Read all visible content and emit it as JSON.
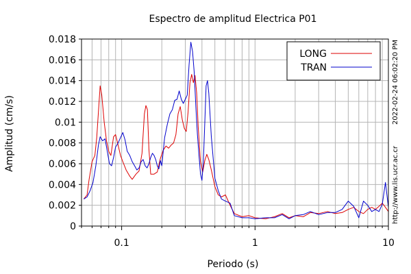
{
  "chart_data": {
    "type": "line",
    "title": "Espectro de amplitud Electrica P01",
    "xlabel": "Periodo (s)",
    "ylabel": "Amplitud (cm/s)",
    "xscale": "log",
    "xlim": [
      0.05,
      10
    ],
    "ylim": [
      0,
      0.018
    ],
    "grid": true,
    "legend_position": "top-right",
    "x_tick_labels": [
      {
        "value": 0.1,
        "label": "0.1"
      },
      {
        "value": 1,
        "label": "1"
      },
      {
        "value": 10,
        "label": "10"
      }
    ],
    "y_tick_labels": [
      {
        "value": 0,
        "label": "0"
      },
      {
        "value": 0.002,
        "label": "0.002"
      },
      {
        "value": 0.004,
        "label": "0.004"
      },
      {
        "value": 0.006,
        "label": "0.006"
      },
      {
        "value": 0.008,
        "label": "0.008"
      },
      {
        "value": 0.01,
        "label": "0.01"
      },
      {
        "value": 0.012,
        "label": "0.012"
      },
      {
        "value": 0.014,
        "label": "0.014"
      },
      {
        "value": 0.016,
        "label": "0.016"
      },
      {
        "value": 0.018,
        "label": "0.018"
      }
    ],
    "annotations": [
      "2022-02-24 06:02:20 PM",
      "http://www.lis.ucr.ac.cr"
    ],
    "series": [
      {
        "name": "LONG",
        "color": "#dd0000",
        "points": [
          [
            0.052,
            0.0026
          ],
          [
            0.055,
            0.003
          ],
          [
            0.057,
            0.0045
          ],
          [
            0.06,
            0.0062
          ],
          [
            0.063,
            0.0068
          ],
          [
            0.065,
            0.0085
          ],
          [
            0.067,
            0.011
          ],
          [
            0.069,
            0.0135
          ],
          [
            0.071,
            0.0126
          ],
          [
            0.074,
            0.01
          ],
          [
            0.077,
            0.0082
          ],
          [
            0.08,
            0.0072
          ],
          [
            0.083,
            0.0068
          ],
          [
            0.087,
            0.0086
          ],
          [
            0.09,
            0.0088
          ],
          [
            0.094,
            0.0078
          ],
          [
            0.098,
            0.0068
          ],
          [
            0.102,
            0.0062
          ],
          [
            0.108,
            0.0054
          ],
          [
            0.115,
            0.0048
          ],
          [
            0.12,
            0.0045
          ],
          [
            0.128,
            0.005
          ],
          [
            0.135,
            0.0053
          ],
          [
            0.142,
            0.007
          ],
          [
            0.148,
            0.0108
          ],
          [
            0.152,
            0.0116
          ],
          [
            0.156,
            0.0112
          ],
          [
            0.16,
            0.0074
          ],
          [
            0.165,
            0.005
          ],
          [
            0.175,
            0.005
          ],
          [
            0.185,
            0.0052
          ],
          [
            0.195,
            0.0065
          ],
          [
            0.205,
            0.0073
          ],
          [
            0.215,
            0.0077
          ],
          [
            0.225,
            0.0075
          ],
          [
            0.235,
            0.0078
          ],
          [
            0.245,
            0.008
          ],
          [
            0.255,
            0.0088
          ],
          [
            0.265,
            0.0108
          ],
          [
            0.275,
            0.0115
          ],
          [
            0.285,
            0.0102
          ],
          [
            0.295,
            0.0094
          ],
          [
            0.305,
            0.0091
          ],
          [
            0.315,
            0.011
          ],
          [
            0.325,
            0.0138
          ],
          [
            0.335,
            0.0146
          ],
          [
            0.345,
            0.0138
          ],
          [
            0.355,
            0.0145
          ],
          [
            0.365,
            0.0128
          ],
          [
            0.375,
            0.0095
          ],
          [
            0.39,
            0.0062
          ],
          [
            0.405,
            0.0052
          ],
          [
            0.42,
            0.0063
          ],
          [
            0.435,
            0.0069
          ],
          [
            0.45,
            0.0064
          ],
          [
            0.47,
            0.0054
          ],
          [
            0.5,
            0.0038
          ],
          [
            0.53,
            0.003
          ],
          [
            0.56,
            0.0028
          ],
          [
            0.6,
            0.003
          ],
          [
            0.65,
            0.002
          ],
          [
            0.7,
            0.0012
          ],
          [
            0.8,
            0.0009
          ],
          [
            0.9,
            0.001
          ],
          [
            1.0,
            0.0008
          ],
          [
            1.2,
            0.0007
          ],
          [
            1.4,
            0.0009
          ],
          [
            1.6,
            0.0012
          ],
          [
            1.8,
            0.0008
          ],
          [
            2.0,
            0.001
          ],
          [
            2.3,
            0.0009
          ],
          [
            2.6,
            0.0013
          ],
          [
            3.0,
            0.0012
          ],
          [
            3.5,
            0.0014
          ],
          [
            4.0,
            0.0012
          ],
          [
            4.5,
            0.0013
          ],
          [
            5.0,
            0.0016
          ],
          [
            5.5,
            0.0018
          ],
          [
            6.0,
            0.0014
          ],
          [
            6.5,
            0.0012
          ],
          [
            7.0,
            0.0016
          ],
          [
            7.5,
            0.0018
          ],
          [
            8.0,
            0.0016
          ],
          [
            8.5,
            0.0019
          ],
          [
            9.0,
            0.0022
          ],
          [
            9.5,
            0.0018
          ],
          [
            10.0,
            0.0014
          ]
        ]
      },
      {
        "name": "TRAN",
        "color": "#0000cc",
        "points": [
          [
            0.052,
            0.0026
          ],
          [
            0.055,
            0.0028
          ],
          [
            0.058,
            0.0034
          ],
          [
            0.061,
            0.0042
          ],
          [
            0.064,
            0.0058
          ],
          [
            0.067,
            0.0078
          ],
          [
            0.069,
            0.0086
          ],
          [
            0.072,
            0.0082
          ],
          [
            0.075,
            0.0084
          ],
          [
            0.078,
            0.0072
          ],
          [
            0.081,
            0.006
          ],
          [
            0.084,
            0.0058
          ],
          [
            0.087,
            0.0066
          ],
          [
            0.09,
            0.0076
          ],
          [
            0.094,
            0.008
          ],
          [
            0.098,
            0.0085
          ],
          [
            0.102,
            0.009
          ],
          [
            0.106,
            0.0083
          ],
          [
            0.11,
            0.0072
          ],
          [
            0.115,
            0.0068
          ],
          [
            0.12,
            0.0062
          ],
          [
            0.125,
            0.0058
          ],
          [
            0.13,
            0.0054
          ],
          [
            0.135,
            0.0056
          ],
          [
            0.14,
            0.0062
          ],
          [
            0.145,
            0.0064
          ],
          [
            0.15,
            0.0058
          ],
          [
            0.155,
            0.0056
          ],
          [
            0.16,
            0.006
          ],
          [
            0.165,
            0.0066
          ],
          [
            0.17,
            0.007
          ],
          [
            0.175,
            0.0068
          ],
          [
            0.18,
            0.0064
          ],
          [
            0.185,
            0.0058
          ],
          [
            0.19,
            0.0055
          ],
          [
            0.195,
            0.0063
          ],
          [
            0.2,
            0.0058
          ],
          [
            0.21,
            0.0085
          ],
          [
            0.22,
            0.0098
          ],
          [
            0.23,
            0.0108
          ],
          [
            0.24,
            0.0112
          ],
          [
            0.25,
            0.0121
          ],
          [
            0.26,
            0.0122
          ],
          [
            0.27,
            0.013
          ],
          [
            0.28,
            0.0122
          ],
          [
            0.29,
            0.0118
          ],
          [
            0.3,
            0.0122
          ],
          [
            0.31,
            0.0126
          ],
          [
            0.32,
            0.0155
          ],
          [
            0.33,
            0.0177
          ],
          [
            0.34,
            0.0168
          ],
          [
            0.35,
            0.0148
          ],
          [
            0.36,
            0.0115
          ],
          [
            0.37,
            0.0088
          ],
          [
            0.38,
            0.0068
          ],
          [
            0.39,
            0.005
          ],
          [
            0.4,
            0.0044
          ],
          [
            0.41,
            0.0062
          ],
          [
            0.42,
            0.01
          ],
          [
            0.43,
            0.0135
          ],
          [
            0.44,
            0.014
          ],
          [
            0.45,
            0.0128
          ],
          [
            0.47,
            0.0086
          ],
          [
            0.5,
            0.0046
          ],
          [
            0.53,
            0.0034
          ],
          [
            0.56,
            0.0026
          ],
          [
            0.6,
            0.0024
          ],
          [
            0.65,
            0.0022
          ],
          [
            0.7,
            0.001
          ],
          [
            0.8,
            0.0008
          ],
          [
            0.9,
            0.0008
          ],
          [
            1.0,
            0.0007
          ],
          [
            1.2,
            0.0008
          ],
          [
            1.4,
            0.0008
          ],
          [
            1.6,
            0.0011
          ],
          [
            1.8,
            0.0007
          ],
          [
            2.0,
            0.001
          ],
          [
            2.3,
            0.0011
          ],
          [
            2.6,
            0.0014
          ],
          [
            3.0,
            0.0011
          ],
          [
            3.5,
            0.0013
          ],
          [
            4.0,
            0.0013
          ],
          [
            4.5,
            0.0016
          ],
          [
            5.0,
            0.0024
          ],
          [
            5.5,
            0.0019
          ],
          [
            6.0,
            0.0008
          ],
          [
            6.5,
            0.0024
          ],
          [
            7.0,
            0.002
          ],
          [
            7.5,
            0.0014
          ],
          [
            8.0,
            0.0016
          ],
          [
            8.5,
            0.0014
          ],
          [
            9.0,
            0.0021
          ],
          [
            9.5,
            0.0042
          ],
          [
            10.0,
            0.0018
          ]
        ]
      }
    ]
  }
}
